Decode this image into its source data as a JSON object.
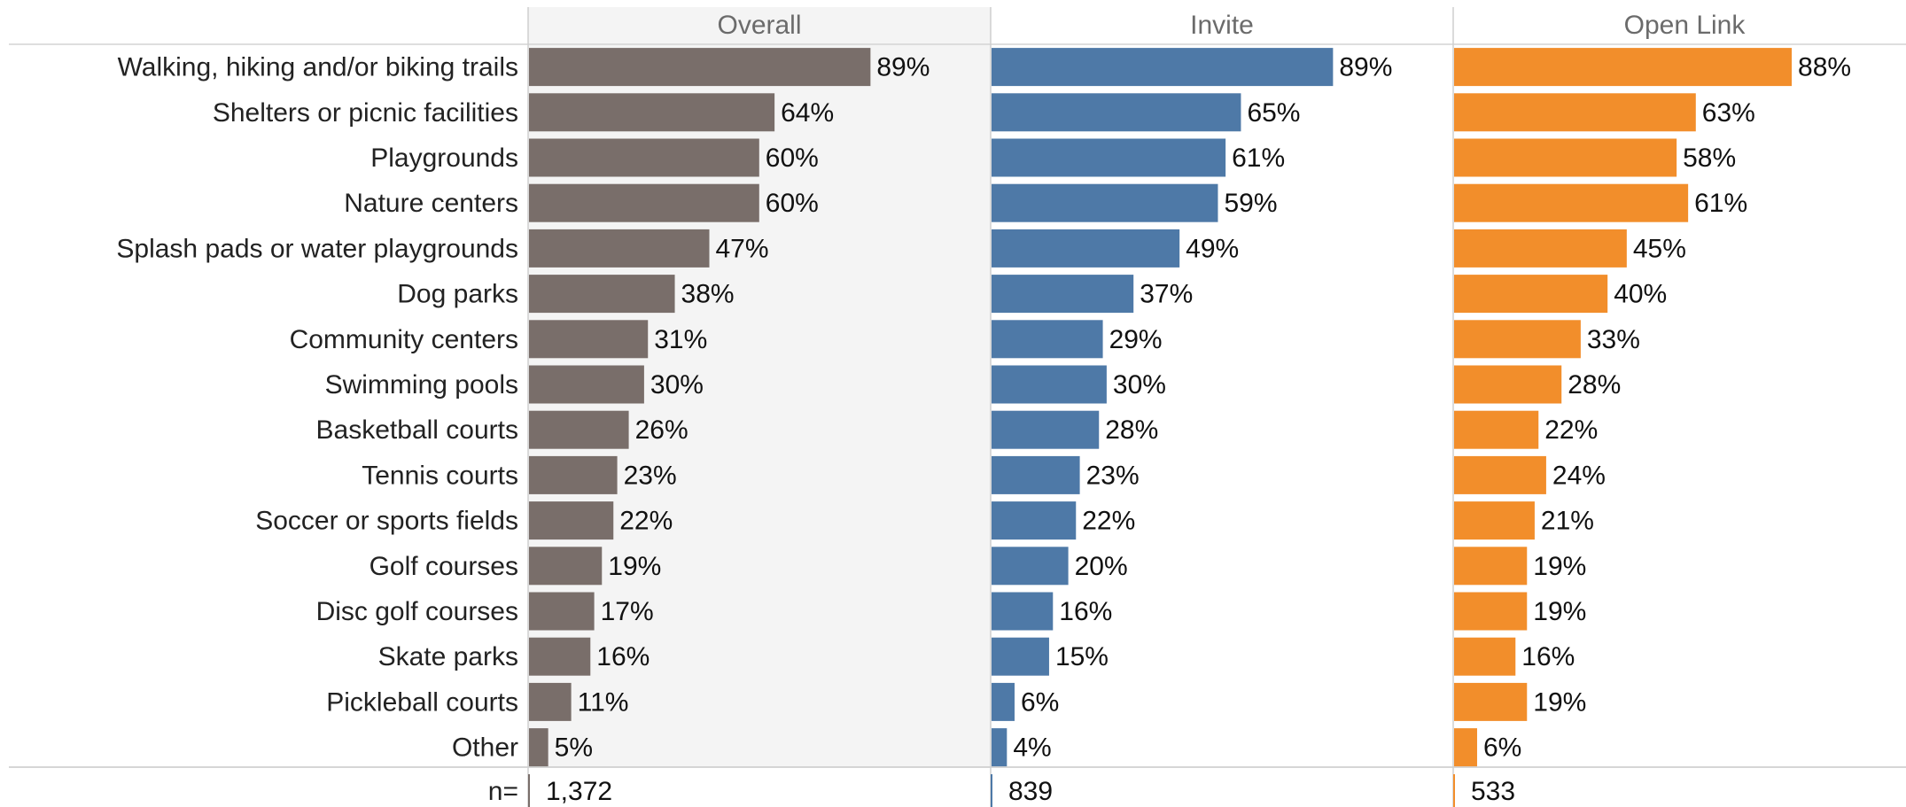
{
  "chart_data": {
    "type": "bar",
    "orientation": "horizontal",
    "categories": [
      "Walking, hiking and/or biking trails",
      "Shelters or picnic facilities",
      "Playgrounds",
      "Nature centers",
      "Splash pads or water playgrounds",
      "Dog parks",
      "Community centers",
      "Swimming pools",
      "Basketball courts",
      "Tennis courts",
      "Soccer or sports fields",
      "Golf courses",
      "Disc golf courses",
      "Skate parks",
      "Pickleball courts",
      "Other"
    ],
    "series": [
      {
        "name": "Overall",
        "color": "#796e6a",
        "values": [
          89,
          64,
          60,
          60,
          47,
          38,
          31,
          30,
          26,
          23,
          22,
          19,
          17,
          16,
          11,
          5
        ],
        "n": "1,372"
      },
      {
        "name": "Invite",
        "color": "#4e79a7",
        "values": [
          89,
          65,
          61,
          59,
          49,
          37,
          29,
          30,
          28,
          23,
          22,
          20,
          16,
          15,
          6,
          4
        ],
        "n": "839"
      },
      {
        "name": "Open Link",
        "color": "#f28e2b",
        "values": [
          88,
          63,
          58,
          61,
          45,
          40,
          33,
          28,
          22,
          24,
          21,
          19,
          19,
          16,
          19,
          6
        ],
        "n": "533"
      }
    ],
    "value_suffix": "%",
    "n_label": "n=",
    "xlim": [
      0,
      100
    ],
    "highlighted_panel": "Overall",
    "highlight_color": "#f4f4f4",
    "grid": false
  }
}
